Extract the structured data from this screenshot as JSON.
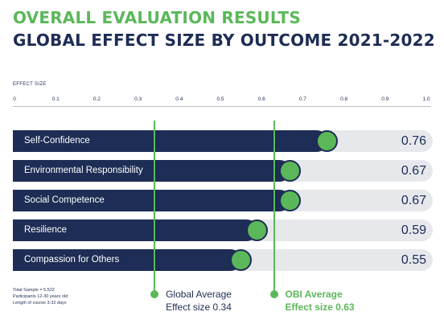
{
  "title": "OVERALL EVALUATION RESULTS",
  "subtitle": "GLOBAL EFFECT SIZE BY OUTCOME 2021-2022",
  "colors": {
    "navy": "#1d2d55",
    "green": "#5bb85a",
    "track": "#e6e8ec"
  },
  "chart_data": {
    "type": "bar",
    "orientation": "horizontal",
    "title": "OVERALL EVALUATION RESULTS",
    "subtitle": "GLOBAL EFFECT SIZE BY OUTCOME 2021-2022",
    "xlabel": "EFFECT SIZE",
    "xlim": [
      0,
      1.0
    ],
    "ticks": [
      "0",
      "0.1",
      "0.2",
      "0.3",
      "0.4",
      "0.5",
      "0.6",
      "0.7",
      "0.8",
      "0.9",
      "1.0"
    ],
    "categories": [
      "Self-Confidence",
      "Environmental Responsibility",
      "Social Competence",
      "Resilience",
      "Compassion for Others"
    ],
    "values": [
      0.76,
      0.67,
      0.67,
      0.59,
      0.55
    ],
    "value_labels": [
      "0.76",
      "0.67",
      "0.67",
      "0.59",
      "0.55"
    ],
    "reference_lines": [
      {
        "value": 0.34,
        "label_line1": "Global Average",
        "label_line2": "Effect size 0.34"
      },
      {
        "value": 0.63,
        "label_line1": "OBI Average",
        "label_line2": "Effect size 0.63"
      }
    ]
  },
  "notes": [
    "Total Sample = 5,522",
    "Participants 12-30 years old",
    "Length of course 3-32 days"
  ]
}
